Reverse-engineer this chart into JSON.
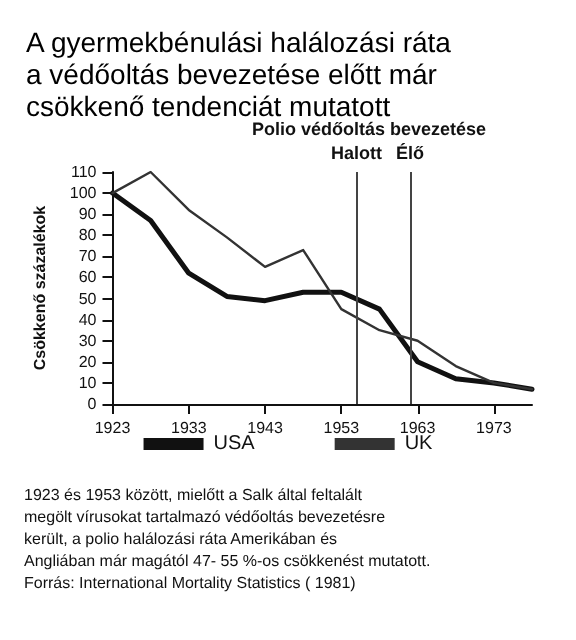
{
  "chart_data": {
    "type": "line",
    "title": "A gyermekbénulási halálozási ráta a védőoltás bevezetése előtt már csökkenő tendenciát mutatott",
    "ylabel": "Csökkenő százalékok",
    "x": [
      1923,
      1928,
      1933,
      1938,
      1943,
      1948,
      1953,
      1958,
      1963,
      1968,
      1973,
      1978
    ],
    "series": [
      {
        "name": "USA",
        "color": "#111111",
        "values": [
          100,
          87,
          62,
          51,
          49,
          53,
          53,
          45,
          20,
          12,
          10,
          7
        ]
      },
      {
        "name": "UK",
        "color": "#333333",
        "values": [
          100,
          110,
          92,
          79,
          65,
          73,
          45,
          35,
          30,
          18,
          10,
          7
        ]
      }
    ],
    "xlim": [
      1923,
      1978
    ],
    "xticks": [
      1923,
      1933,
      1943,
      1953,
      1963,
      1973
    ],
    "ylim": [
      0,
      110
    ],
    "yticks": [
      0,
      10,
      20,
      30,
      40,
      50,
      60,
      70,
      80,
      90,
      100,
      110
    ],
    "ref_lines": [
      {
        "axis": "x",
        "value": 1955,
        "label": "Halott"
      },
      {
        "axis": "x",
        "value": 1962,
        "label": "Élő"
      }
    ],
    "annotations": [
      "Polio védőoltás bevezetése",
      "1923 és 1953 között, mielőtt a Salk által feltalált megölt vírusokat tartalmazó védőoltás bevezetésre került, a polio halálozási ráta Amerikában és Angliában már magától 47- 55 %-os csökkenést mutatott. Forrás: International Mortality Statistics ( 1981)"
    ],
    "grid": false,
    "legend": "bottom",
    "marker": "none",
    "line_style": "solid"
  }
}
